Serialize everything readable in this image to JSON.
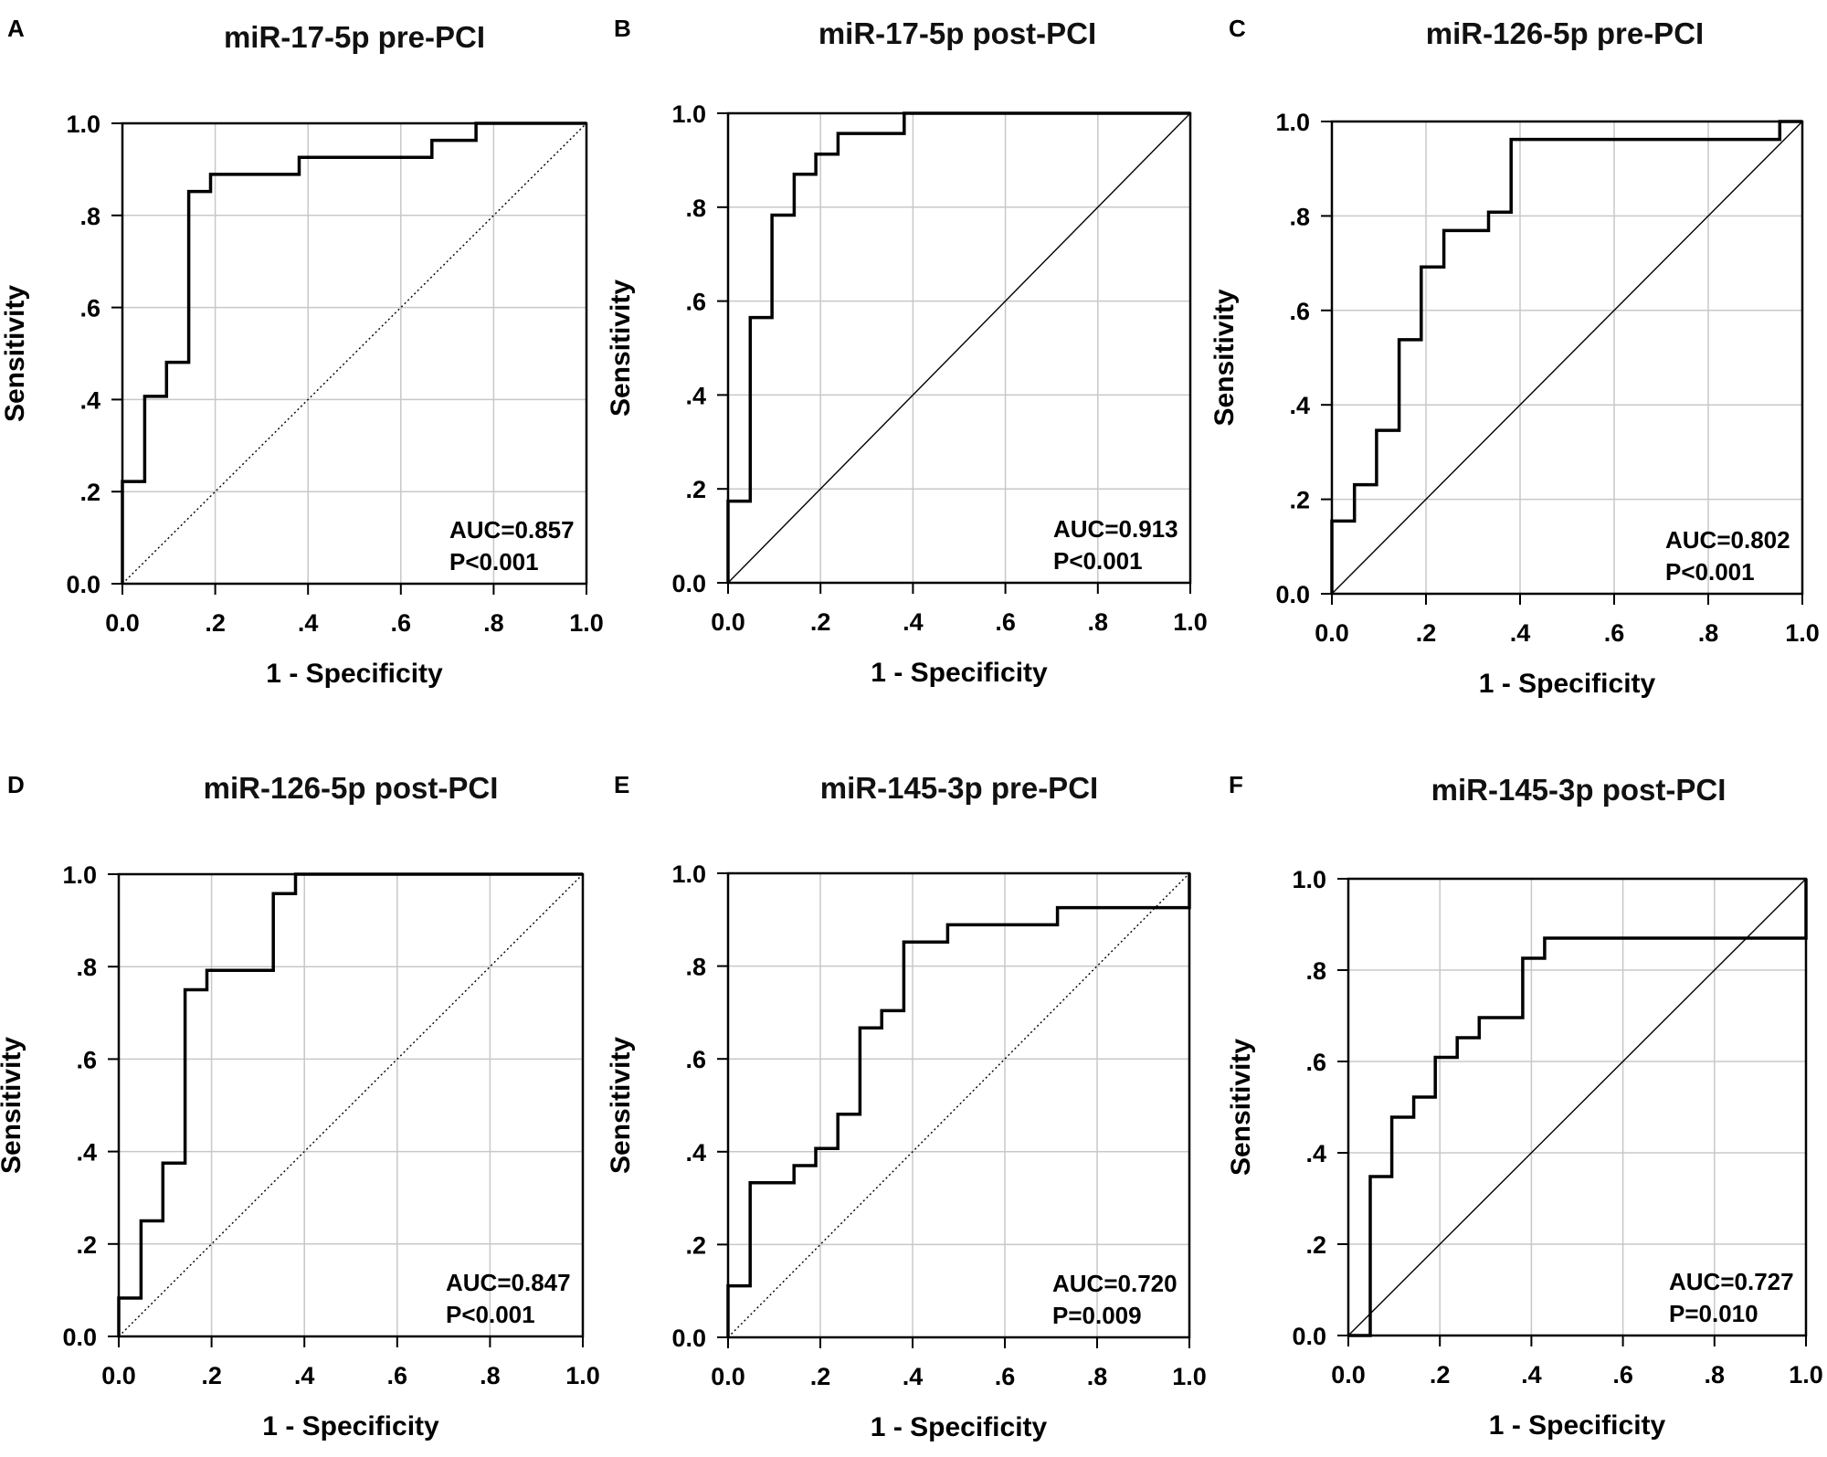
{
  "figure": {
    "x_axis_label": "1 - Specificity",
    "y_axis_label": "Sensitivity",
    "x_tick_labels": [
      "0.0",
      ".2",
      ".4",
      ".6",
      ".8",
      "1.0"
    ],
    "y_tick_labels": [
      "0.0",
      ".2",
      ".4",
      ".6",
      ".8",
      "1.0"
    ]
  },
  "chart_data": [
    {
      "type": "line",
      "panel": "A",
      "title": "miR-17-5p pre-PCI",
      "xlabel": "1 - Specificity",
      "ylabel": "Sensitivity",
      "xlim": [
        0,
        1
      ],
      "ylim": [
        0,
        1
      ],
      "grid": true,
      "reference_line": "dotted",
      "auc_label": "AUC=0.857",
      "p_label": "P<0.001",
      "series": [
        {
          "name": "ROC",
          "x": [
            0,
            0,
            0.048,
            0.048,
            0.095,
            0.095,
            0.143,
            0.143,
            0.19,
            0.19,
            0.381,
            0.381,
            0.667,
            0.667,
            0.762,
            0.762,
            1
          ],
          "y": [
            0,
            0.222,
            0.222,
            0.407,
            0.407,
            0.481,
            0.481,
            0.852,
            0.852,
            0.889,
            0.889,
            0.926,
            0.926,
            0.963,
            0.963,
            1,
            1
          ]
        }
      ]
    },
    {
      "type": "line",
      "panel": "B",
      "title": "miR-17-5p post-PCI",
      "xlabel": "1 - Specificity",
      "ylabel": "Sensitivity",
      "xlim": [
        0,
        1
      ],
      "ylim": [
        0,
        1
      ],
      "grid": true,
      "reference_line": "solid",
      "auc_label": "AUC=0.913",
      "p_label": "P<0.001",
      "series": [
        {
          "name": "ROC",
          "x": [
            0,
            0,
            0.048,
            0.048,
            0.095,
            0.095,
            0.143,
            0.143,
            0.19,
            0.19,
            0.238,
            0.238,
            0.381,
            0.381,
            1
          ],
          "y": [
            0,
            0.174,
            0.174,
            0.565,
            0.565,
            0.783,
            0.783,
            0.87,
            0.87,
            0.913,
            0.913,
            0.957,
            0.957,
            1,
            1
          ]
        }
      ]
    },
    {
      "type": "line",
      "panel": "C",
      "title": "miR-126-5p pre-PCI",
      "xlabel": "1 - Specificity",
      "ylabel": "Sensitivity",
      "xlim": [
        0,
        1
      ],
      "ylim": [
        0,
        1
      ],
      "grid": true,
      "reference_line": "solid",
      "auc_label": "AUC=0.802",
      "p_label": "P<0.001",
      "series": [
        {
          "name": "ROC",
          "x": [
            0,
            0,
            0.048,
            0.048,
            0.095,
            0.095,
            0.143,
            0.143,
            0.19,
            0.19,
            0.238,
            0.238,
            0.333,
            0.333,
            0.381,
            0.381,
            0.952,
            0.952,
            1
          ],
          "y": [
            0,
            0.154,
            0.154,
            0.231,
            0.231,
            0.346,
            0.346,
            0.538,
            0.538,
            0.692,
            0.692,
            0.769,
            0.769,
            0.808,
            0.808,
            0.962,
            0.962,
            1,
            1
          ]
        }
      ]
    },
    {
      "type": "line",
      "panel": "D",
      "title": "miR-126-5p post-PCI",
      "xlabel": "1 - Specificity",
      "ylabel": "Sensitivity",
      "xlim": [
        0,
        1
      ],
      "ylim": [
        0,
        1
      ],
      "grid": true,
      "reference_line": "dotted",
      "auc_label": "AUC=0.847",
      "p_label": "P<0.001",
      "series": [
        {
          "name": "ROC",
          "x": [
            0,
            0,
            0.048,
            0.048,
            0.095,
            0.095,
            0.143,
            0.143,
            0.19,
            0.19,
            0.333,
            0.333,
            0.381,
            0.381,
            1
          ],
          "y": [
            0,
            0.083,
            0.083,
            0.25,
            0.25,
            0.375,
            0.375,
            0.75,
            0.75,
            0.792,
            0.792,
            0.958,
            0.958,
            1,
            1
          ]
        }
      ]
    },
    {
      "type": "line",
      "panel": "E",
      "title": "miR-145-3p pre-PCI",
      "xlabel": "1 - Specificity",
      "ylabel": "Sensitivity",
      "xlim": [
        0,
        1
      ],
      "ylim": [
        0,
        1
      ],
      "grid": true,
      "reference_line": "dotted",
      "auc_label": "AUC=0.720",
      "p_label": "P=0.009",
      "series": [
        {
          "name": "ROC",
          "x": [
            0,
            0,
            0.048,
            0.048,
            0.143,
            0.143,
            0.19,
            0.19,
            0.238,
            0.238,
            0.286,
            0.286,
            0.333,
            0.333,
            0.381,
            0.381,
            0.476,
            0.476,
            0.714,
            0.714,
            1,
            1
          ],
          "y": [
            0,
            0.111,
            0.111,
            0.333,
            0.333,
            0.37,
            0.37,
            0.407,
            0.407,
            0.481,
            0.481,
            0.667,
            0.667,
            0.704,
            0.704,
            0.852,
            0.852,
            0.889,
            0.889,
            0.926,
            0.926,
            1
          ]
        }
      ]
    },
    {
      "type": "line",
      "panel": "F",
      "title": "miR-145-3p post-PCI",
      "xlabel": "1 - Specificity",
      "ylabel": "Sensitivity",
      "xlim": [
        0,
        1
      ],
      "ylim": [
        0,
        1
      ],
      "grid": true,
      "reference_line": "solid",
      "auc_label": "AUC=0.727",
      "p_label": "P=0.010",
      "series": [
        {
          "name": "ROC",
          "x": [
            0,
            0.048,
            0.048,
            0.095,
            0.095,
            0.143,
            0.143,
            0.19,
            0.19,
            0.238,
            0.238,
            0.286,
            0.286,
            0.381,
            0.381,
            0.429,
            0.429,
            1,
            1
          ],
          "y": [
            0,
            0,
            0.348,
            0.348,
            0.478,
            0.478,
            0.522,
            0.522,
            0.609,
            0.609,
            0.652,
            0.652,
            0.696,
            0.696,
            0.826,
            0.826,
            0.87,
            0.87,
            1
          ]
        }
      ]
    }
  ]
}
